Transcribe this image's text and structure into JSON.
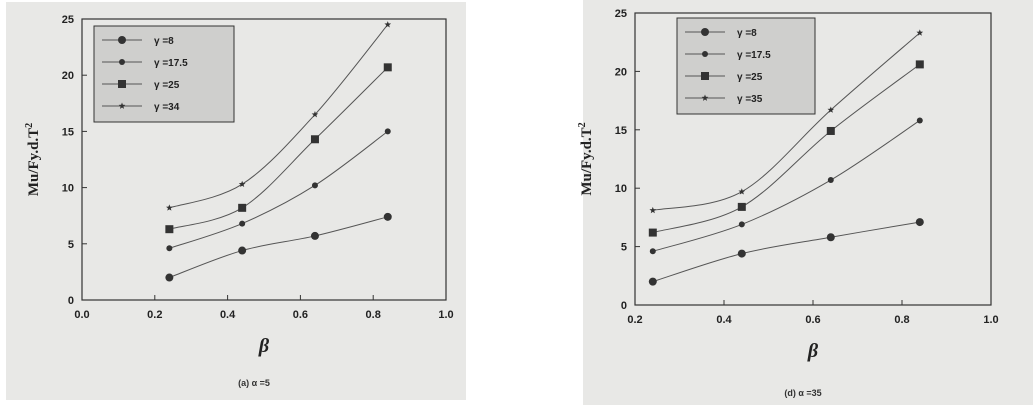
{
  "chart_data": [
    {
      "type": "line",
      "ylabel": "Mu/Fy.d.T",
      "ylabel_sup": "2",
      "xlabel": "β",
      "caption": "(a) α =5",
      "xlim": [
        0.0,
        1.0
      ],
      "ylim": [
        0,
        25
      ],
      "xticks": [
        "0.0",
        "0.2",
        "0.4",
        "0.6",
        "0.8",
        "1.0"
      ],
      "yticks": [
        "0",
        "5",
        "10",
        "15",
        "20",
        "25"
      ],
      "grid": false,
      "legend_position": "top-left",
      "x": [
        0.24,
        0.44,
        0.64,
        0.84
      ],
      "series": [
        {
          "name": "γ =8",
          "marker": "circle",
          "values": [
            2.0,
            4.4,
            5.7,
            7.4
          ]
        },
        {
          "name": "γ =17.5",
          "marker": "dot",
          "values": [
            4.6,
            6.8,
            10.2,
            15.0
          ]
        },
        {
          "name": "γ =25",
          "marker": "square",
          "values": [
            6.3,
            8.2,
            14.3,
            20.7
          ]
        },
        {
          "name": "γ =34",
          "marker": "star",
          "values": [
            8.2,
            10.3,
            16.5,
            24.5
          ]
        }
      ]
    },
    {
      "type": "line",
      "ylabel": "Mu/Fy.d.T",
      "ylabel_sup": "2",
      "xlabel": "β",
      "caption": "(d) α =35",
      "xlim": [
        0.2,
        1.0
      ],
      "ylim": [
        0,
        25
      ],
      "xticks": [
        "0.2",
        "0.4",
        "0.6",
        "0.8",
        "1.0"
      ],
      "yticks": [
        "0",
        "5",
        "10",
        "15",
        "20",
        "25"
      ],
      "grid": false,
      "legend_position": "top-left",
      "x": [
        0.24,
        0.44,
        0.64,
        0.84
      ],
      "series": [
        {
          "name": "γ =8",
          "marker": "circle",
          "values": [
            2.0,
            4.4,
            5.8,
            7.1
          ]
        },
        {
          "name": "γ =17.5",
          "marker": "dot",
          "values": [
            4.6,
            6.9,
            10.7,
            15.8
          ]
        },
        {
          "name": "γ =25",
          "marker": "square",
          "values": [
            6.2,
            8.4,
            14.9,
            20.6
          ]
        },
        {
          "name": "γ =35",
          "marker": "star",
          "values": [
            8.1,
            9.7,
            16.7,
            23.3
          ]
        }
      ]
    }
  ],
  "colors": {
    "line": "#555555",
    "marker": "#333333",
    "axis": "#333333",
    "legend_bg": "#cfcfcd"
  }
}
